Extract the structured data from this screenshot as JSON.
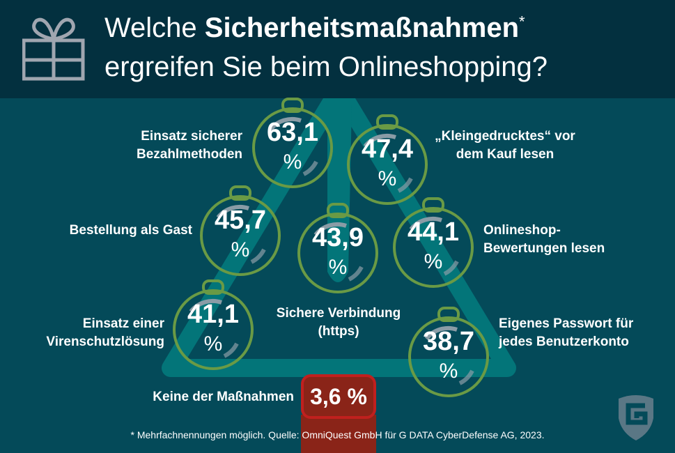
{
  "title": {
    "normal_1": "Welche ",
    "bold": "Sicherheitsmaßnahmen",
    "asterisk": "*",
    "line2": "ergreifen Sie beim Onlineshopping?"
  },
  "chart_data": {
    "type": "bar",
    "title": "Welche Sicherheitsmaßnahmen* ergreifen Sie beim Onlineshopping?",
    "unit": "%",
    "categories": [
      "Einsatz sicherer Bezahlmethoden",
      "„Kleingedrucktes“ vor dem Kauf lesen",
      "Bestellung als Gast",
      "Sichere Verbindung (https)",
      "Onlineshop-Bewertungen lesen",
      "Einsatz einer Virenschutzlösung",
      "Eigenes Passwort für jedes Benutzerkonto",
      "Keine der Maßnahmen"
    ],
    "values": [
      63.1,
      47.4,
      45.7,
      43.9,
      44.1,
      41.1,
      38.7,
      3.6
    ],
    "labels": [
      "63,1",
      "47,4",
      "45,7",
      "43,9",
      "44,1",
      "41,1",
      "38,7",
      "3,6 %"
    ],
    "pct": "%"
  },
  "footnote": "* Mehrfachnennungen möglich. Quelle: OmniQuest GmbH für G DATA CyberDefense AG, 2023.",
  "colors": {
    "header": "#03303f",
    "background": "#044a59",
    "tree": "#037579",
    "ornament": "#6a9a45",
    "none": "#8a2418"
  }
}
